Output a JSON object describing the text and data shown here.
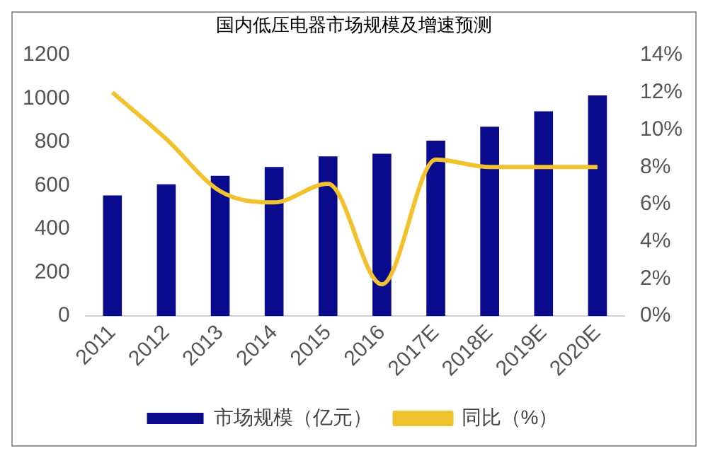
{
  "chart_data": {
    "type": "bar",
    "title": "国内低压电器市场规模及增速预测",
    "categories": [
      "2011",
      "2012",
      "2013",
      "2014",
      "2015",
      "2016",
      "2017E",
      "2018E",
      "2019E",
      "2020E"
    ],
    "series": [
      {
        "name": "市场规模（亿元）",
        "color": "#0a0a8c",
        "values": [
          555,
          606,
          645,
          686,
          734,
          747,
          807,
          871,
          942,
          1015
        ]
      },
      {
        "name": "同比（%）",
        "type": "line",
        "axis": "y2",
        "color": "#f2c12e",
        "values": [
          12,
          9.5,
          6.7,
          6.1,
          7.1,
          1.7,
          8.4,
          8,
          8,
          8
        ]
      }
    ],
    "ylim": [
      0,
      1200
    ],
    "yticks": [
      0,
      200,
      400,
      600,
      800,
      1000,
      1200
    ],
    "y2lim": [
      0,
      14
    ],
    "y2ticks": [
      {
        "value": 0,
        "label": "0%"
      },
      {
        "value": 2,
        "label": "2%"
      },
      {
        "value": 4,
        "label": "4%"
      },
      {
        "value": 6,
        "label": "6%"
      },
      {
        "value": 8,
        "label": "8%"
      },
      {
        "value": 10,
        "label": "10%"
      },
      {
        "value": 12,
        "label": "12%"
      },
      {
        "value": 14,
        "label": "14%"
      }
    ],
    "grid": false,
    "legend": "bottom",
    "marker": "none",
    "line_style": "solid"
  }
}
